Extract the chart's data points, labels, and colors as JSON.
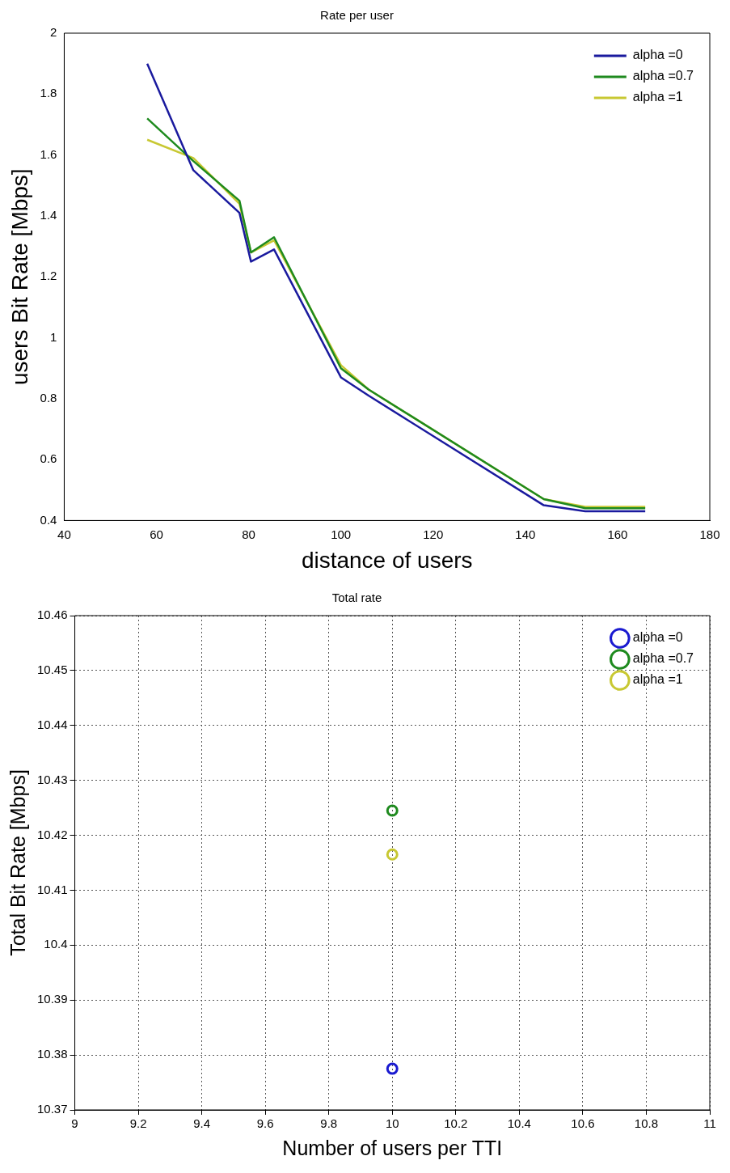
{
  "chart_data": [
    {
      "type": "line",
      "title": "Rate per user",
      "xlabel": "distance of users",
      "ylabel": "users Bit Rate [Mbps]",
      "x": [
        58,
        68,
        78,
        80.5,
        85.5,
        100,
        106,
        144,
        153,
        166
      ],
      "series": [
        {
          "name": "alpha =0",
          "color": "#1a1a9e",
          "values": [
            1.9,
            1.55,
            1.41,
            1.25,
            1.29,
            0.87,
            0.81,
            0.45,
            0.43,
            0.43
          ]
        },
        {
          "name": "alpha =0.7",
          "color": "#1e8a1e",
          "values": [
            1.72,
            1.58,
            1.45,
            1.28,
            1.33,
            0.9,
            0.83,
            0.47,
            0.44,
            0.44
          ]
        },
        {
          "name": "alpha =1",
          "color": "#c8c832",
          "values": [
            1.65,
            1.59,
            1.44,
            1.28,
            1.32,
            0.91,
            0.83,
            0.47,
            0.445,
            0.445
          ]
        }
      ],
      "xlim": [
        40,
        180
      ],
      "xticks": [
        40,
        60,
        80,
        100,
        120,
        140,
        160,
        180
      ],
      "ylim": [
        0.4,
        2
      ],
      "yticks": [
        0.4,
        0.6,
        0.8,
        1,
        1.2,
        1.4,
        1.6,
        1.8,
        2
      ],
      "grid": false,
      "legend": "top right",
      "marker": "none",
      "line_style": "solid"
    },
    {
      "type": "scatter",
      "title": "Total rate",
      "xlabel": "Number of users per TTI",
      "ylabel": "Total Bit Rate [Mbps]",
      "series": [
        {
          "name": "alpha =0",
          "color": "#1a1ad0",
          "values": [
            10.3775
          ]
        },
        {
          "name": "alpha =0.7",
          "color": "#1e8a1e",
          "values": [
            10.4245
          ]
        },
        {
          "name": "alpha =1",
          "color": "#c8c832",
          "values": [
            10.4165
          ]
        }
      ],
      "x": [
        10
      ],
      "xlim": [
        9,
        11
      ],
      "xticks": [
        9,
        9.2,
        9.4,
        9.6,
        9.8,
        10,
        10.2,
        10.4,
        10.6,
        10.8,
        11
      ],
      "ylim": [
        10.37,
        10.46
      ],
      "yticks": [
        10.37,
        10.38,
        10.39,
        10.4,
        10.41,
        10.42,
        10.43,
        10.44,
        10.45,
        10.46
      ],
      "grid": true,
      "legend": "top right",
      "marker": "circle"
    }
  ]
}
